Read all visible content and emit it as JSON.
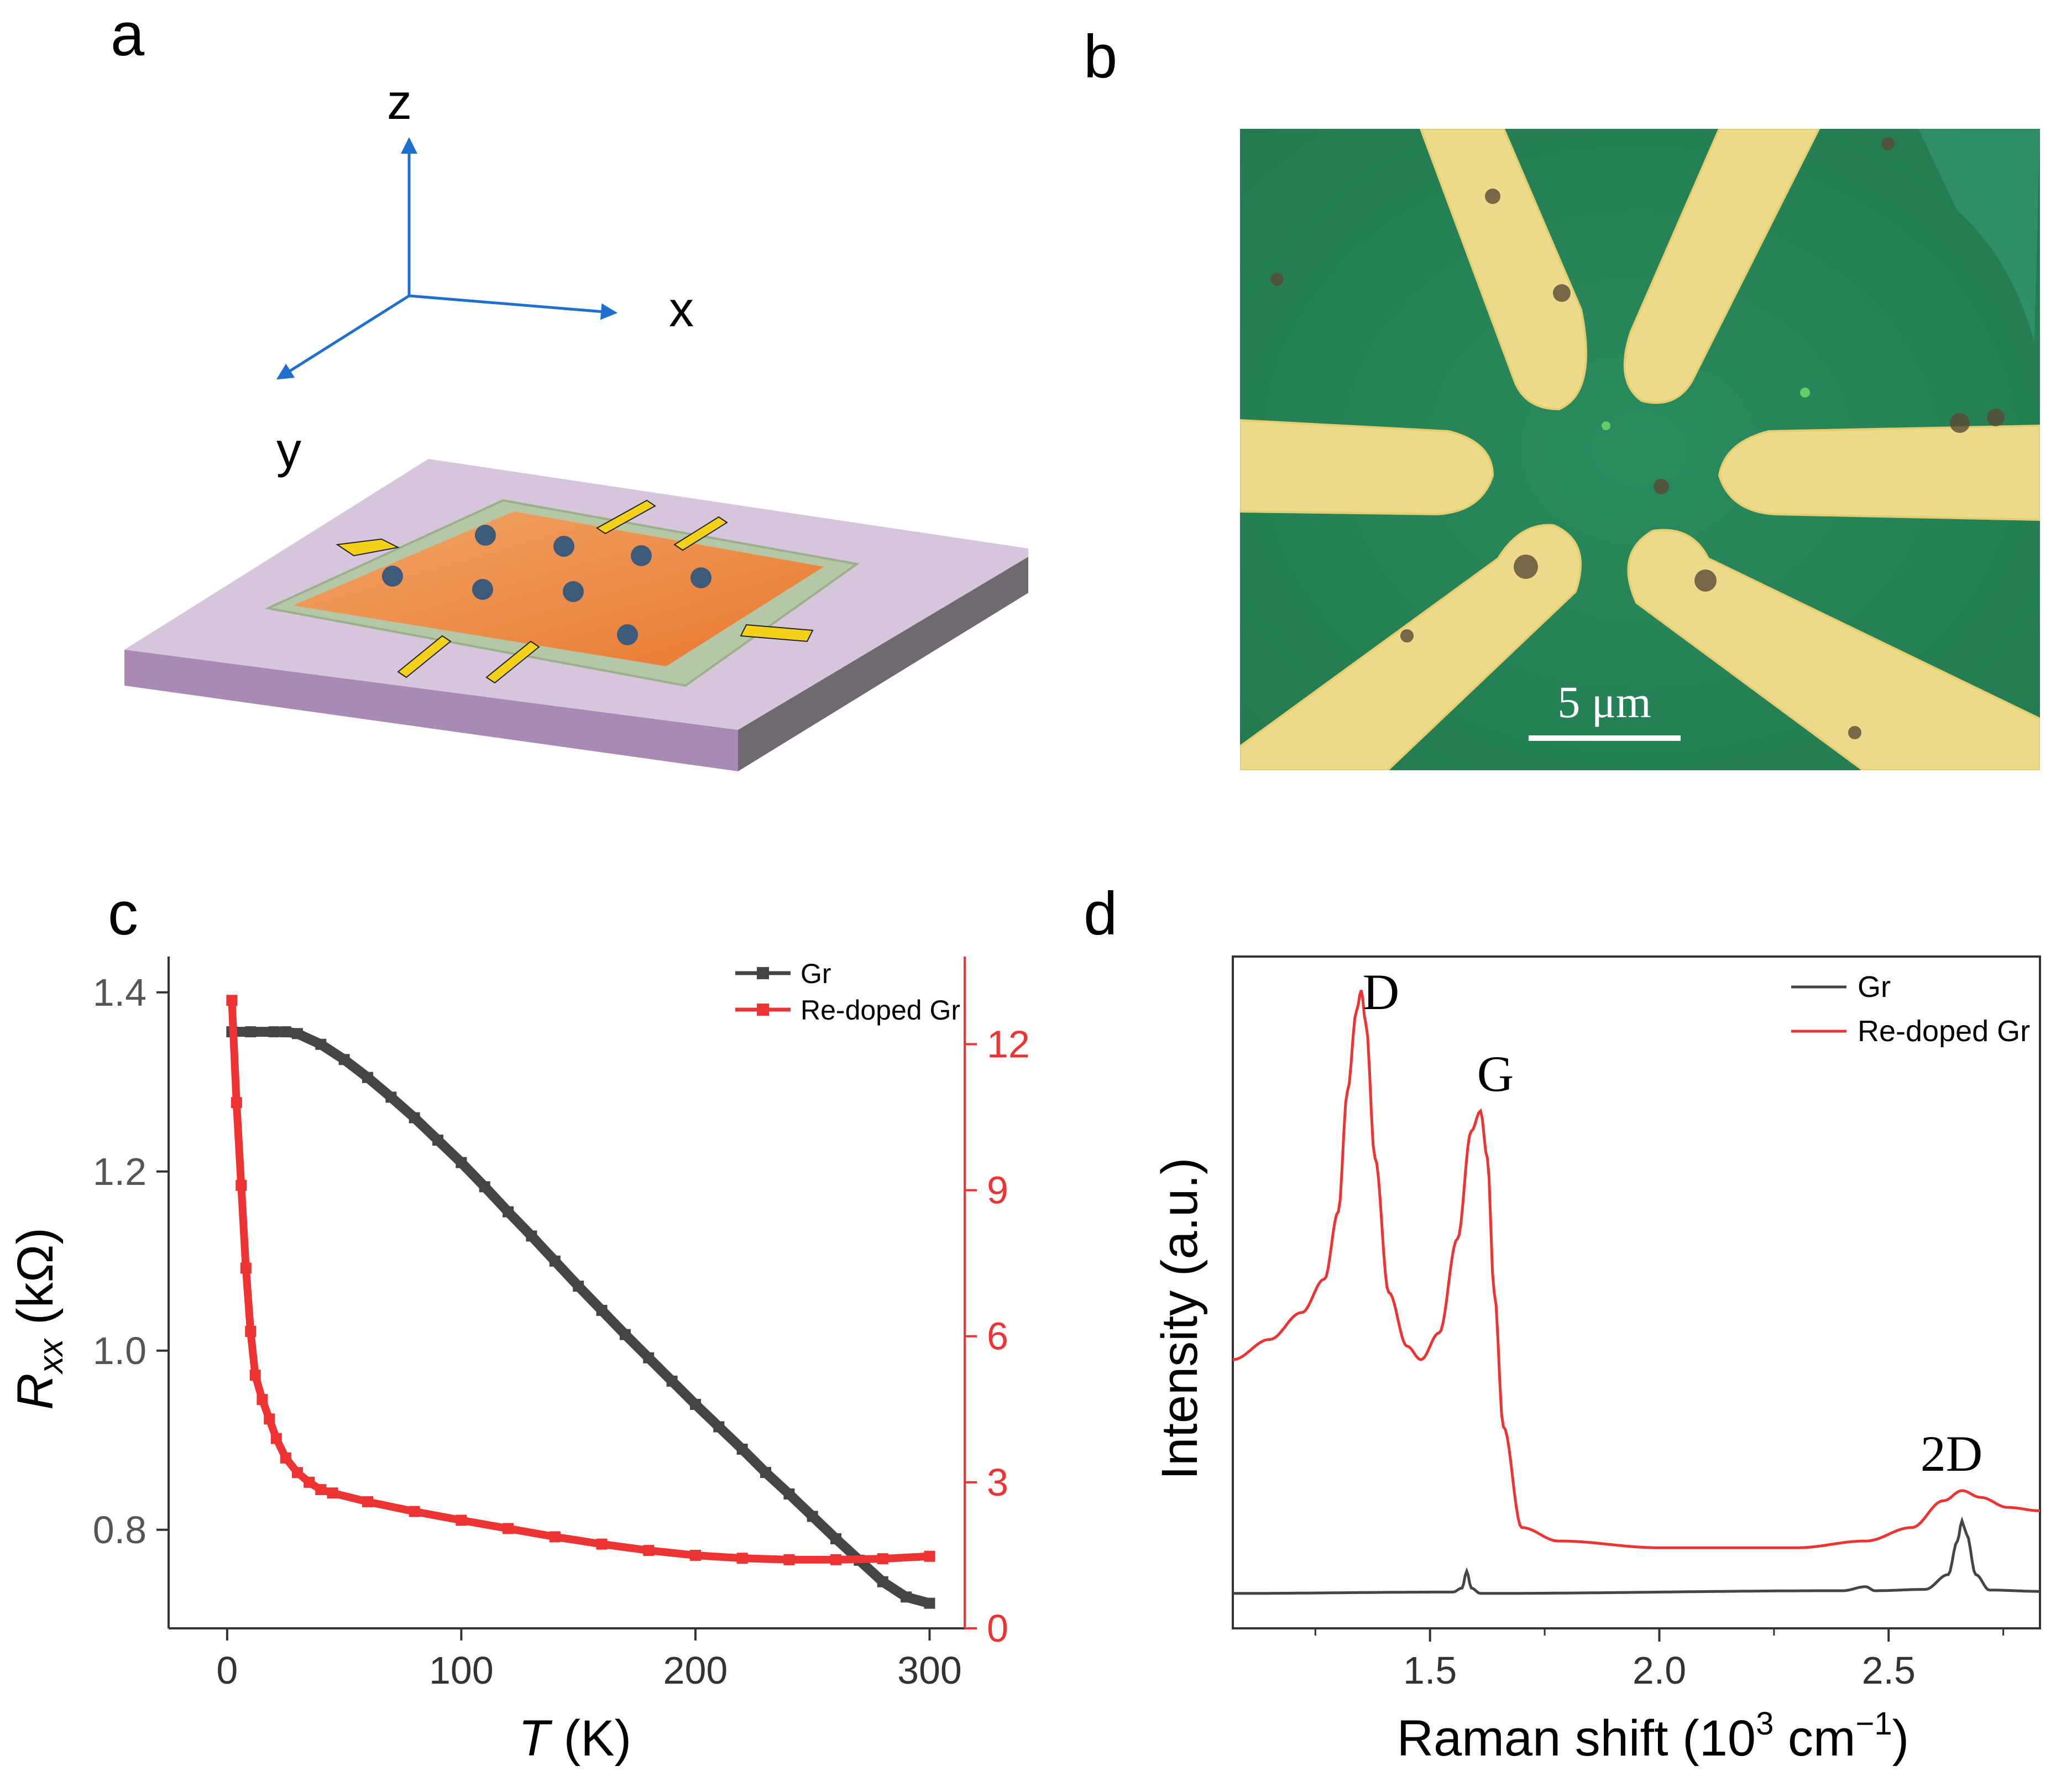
{
  "panels": {
    "a": {
      "letter": "a",
      "axes": {
        "z": "z",
        "x": "x",
        "y": "y"
      }
    },
    "b": {
      "letter": "b",
      "scale_bar_label": "5 μm"
    },
    "c": {
      "letter": "c",
      "xlabel_italic": "T",
      "xlabel_rest": " (K)",
      "ylabel_main": "R",
      "ylabel_sub": "xx",
      "ylabel_unit": " (kΩ)",
      "legend": [
        "Gr",
        "Re-doped Gr"
      ]
    },
    "d": {
      "letter": "d",
      "xlabel_main": "Raman shift (10",
      "xlabel_sup1": "3",
      "xlabel_mid": " cm",
      "xlabel_sup2": "−1",
      "xlabel_end": ")",
      "ylabel": "Intensity (a.u.)",
      "peak_labels": [
        "D",
        "G",
        "2D"
      ],
      "legend": [
        "Gr",
        "Re-doped Gr"
      ]
    }
  },
  "colors": {
    "gr": "#454545",
    "redoped": "#ee3333",
    "axis_right": "#ee3333"
  },
  "chart_data": [
    {
      "type": "scatter",
      "panel": "c",
      "x_axis": {
        "label": "T (K)",
        "ticks": [
          0,
          100,
          200,
          300
        ],
        "range": [
          -25,
          315
        ]
      },
      "y_axis_left": {
        "label": "Rxx (kΩ)",
        "ticks": [
          0.8,
          1.0,
          1.2,
          1.4
        ],
        "range": [
          0.69,
          1.44
        ],
        "series": "Gr"
      },
      "y_axis_right": {
        "label": "Rxx (kΩ)",
        "ticks": [
          0,
          3,
          6,
          9,
          12
        ],
        "range": [
          0,
          13.8
        ],
        "series": "Re-doped Gr",
        "color": "#ee3333"
      },
      "series": [
        {
          "name": "Gr",
          "axis": "left",
          "color": "#454545",
          "x": [
            2,
            10,
            20,
            25,
            30,
            40,
            50,
            60,
            70,
            80,
            90,
            100,
            110,
            120,
            130,
            140,
            150,
            160,
            170,
            180,
            190,
            200,
            210,
            220,
            230,
            240,
            250,
            260,
            270,
            280,
            290,
            300
          ],
          "y": [
            1.356,
            1.356,
            1.356,
            1.356,
            1.354,
            1.342,
            1.325,
            1.305,
            1.283,
            1.26,
            1.235,
            1.21,
            1.183,
            1.155,
            1.128,
            1.1,
            1.072,
            1.045,
            1.018,
            0.992,
            0.966,
            0.94,
            0.915,
            0.89,
            0.864,
            0.84,
            0.815,
            0.79,
            0.766,
            0.742,
            0.725,
            0.718
          ]
        },
        {
          "name": "Re-doped Gr",
          "axis": "right",
          "color": "#ee3333",
          "x": [
            2,
            4,
            6,
            8,
            10,
            12,
            15,
            18,
            21,
            25,
            30,
            35,
            40,
            45,
            60,
            80,
            100,
            120,
            140,
            160,
            180,
            200,
            220,
            240,
            260,
            280,
            300
          ],
          "y": [
            12.9,
            10.8,
            9.1,
            7.4,
            6.1,
            5.2,
            4.7,
            4.3,
            3.9,
            3.5,
            3.2,
            3.0,
            2.85,
            2.78,
            2.6,
            2.4,
            2.22,
            2.05,
            1.88,
            1.73,
            1.6,
            1.5,
            1.44,
            1.41,
            1.41,
            1.43,
            1.48
          ]
        }
      ],
      "legend_position": "top-right"
    },
    {
      "type": "line",
      "panel": "d",
      "x_axis": {
        "label": "Raman shift (10^3 cm^-1)",
        "ticks": [
          1.5,
          2.0,
          2.5
        ],
        "range": [
          1.07,
          2.83
        ]
      },
      "y_axis": {
        "label": "Intensity (a.u.)",
        "range": [
          0,
          1
        ]
      },
      "series": [
        {
          "name": "Gr",
          "color": "#454545",
          "x": [
            1.07,
            1.55,
            1.57,
            1.58,
            1.59,
            1.61,
            2.4,
            2.45,
            2.47,
            2.58,
            2.63,
            2.65,
            2.66,
            2.67,
            2.69,
            2.72,
            2.83
          ],
          "y": [
            0.052,
            0.054,
            0.06,
            0.085,
            0.06,
            0.052,
            0.056,
            0.062,
            0.056,
            0.058,
            0.08,
            0.13,
            0.16,
            0.14,
            0.08,
            0.057,
            0.055
          ]
        },
        {
          "name": "Re-doped Gr",
          "color": "#ee3333",
          "x": [
            1.07,
            1.15,
            1.22,
            1.27,
            1.3,
            1.32,
            1.34,
            1.35,
            1.36,
            1.38,
            1.41,
            1.45,
            1.48,
            1.52,
            1.56,
            1.59,
            1.61,
            1.625,
            1.64,
            1.66,
            1.7,
            1.78,
            2.0,
            2.3,
            2.45,
            2.55,
            2.62,
            2.66,
            2.7,
            2.76,
            2.83
          ],
          "y": [
            0.4,
            0.43,
            0.47,
            0.52,
            0.62,
            0.8,
            0.92,
            0.95,
            0.9,
            0.7,
            0.5,
            0.42,
            0.4,
            0.44,
            0.58,
            0.74,
            0.77,
            0.7,
            0.5,
            0.3,
            0.15,
            0.13,
            0.12,
            0.12,
            0.13,
            0.15,
            0.19,
            0.205,
            0.195,
            0.18,
            0.175
          ]
        }
      ],
      "peak_labels": [
        "D",
        "G",
        "2D"
      ],
      "legend_position": "top-right"
    }
  ]
}
